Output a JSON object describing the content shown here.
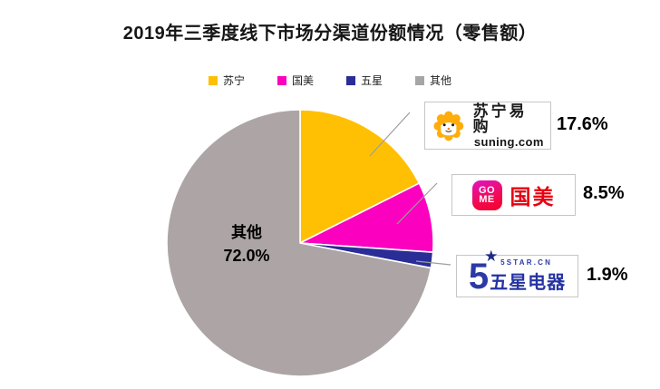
{
  "title": "2019年三季度线下市场分渠道份额情况（零售额）",
  "chart_data": {
    "type": "pie",
    "title": "2019年三季度线下市场分渠道份额情况（零售额）",
    "categories": [
      "苏宁",
      "国美",
      "五星",
      "其他"
    ],
    "values": [
      17.6,
      8.5,
      1.9,
      72.0
    ],
    "unit": "%",
    "colors": [
      "#FFC003",
      "#FB00BE",
      "#2A2D96",
      "#ADA5A5"
    ],
    "start_angle": "12-oclock-clockwise",
    "legend_position": "top-center",
    "inner_label": {
      "lines": [
        "其他",
        "72.0%"
      ]
    }
  },
  "legend": {
    "items": [
      {
        "label": "苏宁",
        "color": "#FFC000"
      },
      {
        "label": "国美",
        "color": "#FB00BE"
      },
      {
        "label": "五星",
        "color": "#2A2D96"
      },
      {
        "label": "其他",
        "color": "#A6A6A6"
      }
    ]
  },
  "callouts": {
    "suning": {
      "brand_cn": "苏宁易购",
      "brand_en": "suning.com",
      "value": "17.6%"
    },
    "gome": {
      "logo_top": "GO",
      "logo_bottom": "ME",
      "brand_cn": "国美",
      "value": "8.5%"
    },
    "fivestar": {
      "big_digit": "5",
      "star": "★",
      "brand_en": "5STAR.CN",
      "brand_cn": "五星电器",
      "value": "1.9%"
    }
  }
}
